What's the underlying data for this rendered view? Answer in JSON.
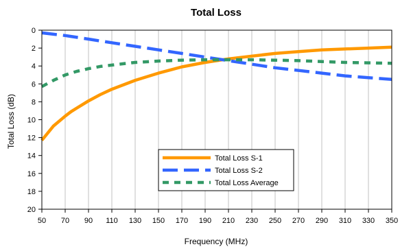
{
  "chart_data": {
    "type": "line",
    "title": "Total Loss",
    "xlabel": "Frequency (MHz)",
    "ylabel": "Total Loss (dB)",
    "xlim": [
      50,
      350
    ],
    "ylim": [
      0,
      20
    ],
    "y_inverted": true,
    "x_ticks": [
      50,
      70,
      90,
      110,
      130,
      150,
      170,
      190,
      210,
      230,
      250,
      270,
      290,
      310,
      330,
      350
    ],
    "y_ticks": [
      0,
      2,
      4,
      6,
      8,
      10,
      12,
      14,
      16,
      18,
      20
    ],
    "grid": "vertical",
    "legend_position": "lower-center",
    "x": [
      50,
      60,
      70,
      75,
      80,
      90,
      100,
      110,
      120,
      130,
      150,
      170,
      190,
      210,
      230,
      250,
      270,
      290,
      310,
      330,
      350
    ],
    "series": [
      {
        "name": "Total Loss S-1",
        "color": "#ff9900",
        "style": "solid",
        "values": [
          12.3,
          10.7,
          9.6,
          9.1,
          8.7,
          7.9,
          7.2,
          6.6,
          6.1,
          5.6,
          4.8,
          4.1,
          3.6,
          3.2,
          2.9,
          2.6,
          2.4,
          2.2,
          2.1,
          2.0,
          1.9
        ]
      },
      {
        "name": "Total Loss S-2",
        "color": "#3366ff",
        "style": "dashed",
        "values": [
          0.3,
          0.45,
          0.6,
          0.7,
          0.8,
          1.0,
          1.2,
          1.4,
          1.6,
          1.8,
          2.2,
          2.6,
          3.0,
          3.4,
          3.8,
          4.2,
          4.5,
          4.8,
          5.1,
          5.3,
          5.5
        ]
      },
      {
        "name": "Total Loss Average",
        "color": "#339966",
        "style": "dotted",
        "values": [
          6.3,
          5.6,
          5.0,
          4.8,
          4.6,
          4.3,
          4.05,
          3.9,
          3.75,
          3.6,
          3.45,
          3.35,
          3.3,
          3.3,
          3.3,
          3.35,
          3.4,
          3.5,
          3.6,
          3.65,
          3.7
        ]
      }
    ]
  },
  "colors": {
    "background": "#ffffff",
    "axis": "#000000",
    "grid": "#c0c0c0"
  }
}
